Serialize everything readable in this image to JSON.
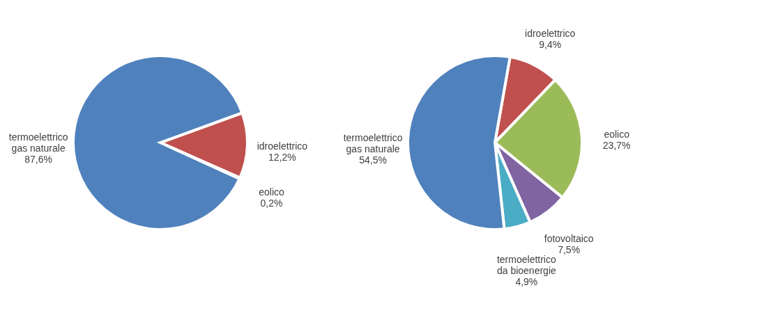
{
  "chart_data": [
    {
      "type": "pie",
      "categories": [
        "idroelettrico",
        "eolico",
        "termoelettrico gas naturale"
      ],
      "values": [
        12.2,
        0.2,
        87.6
      ],
      "colors": [
        "#c0504d",
        "#9bbb59",
        "#4f81bd"
      ],
      "value_labels": [
        "12,2%",
        "0,2%",
        "87,6%"
      ]
    },
    {
      "type": "pie",
      "categories": [
        "idroelettrico",
        "eolico",
        "fotovoltaico",
        "termoelettrico da bioenergie",
        "termoelettrico gas naturale"
      ],
      "values": [
        9.4,
        23.7,
        7.5,
        4.9,
        54.5
      ],
      "colors": [
        "#c0504d",
        "#9bbb59",
        "#8064a2",
        "#4bacc6",
        "#4f81bd"
      ],
      "value_labels": [
        "9,4%",
        "23,7%",
        "7,5%",
        "4,9%",
        "54,5%"
      ]
    }
  ]
}
